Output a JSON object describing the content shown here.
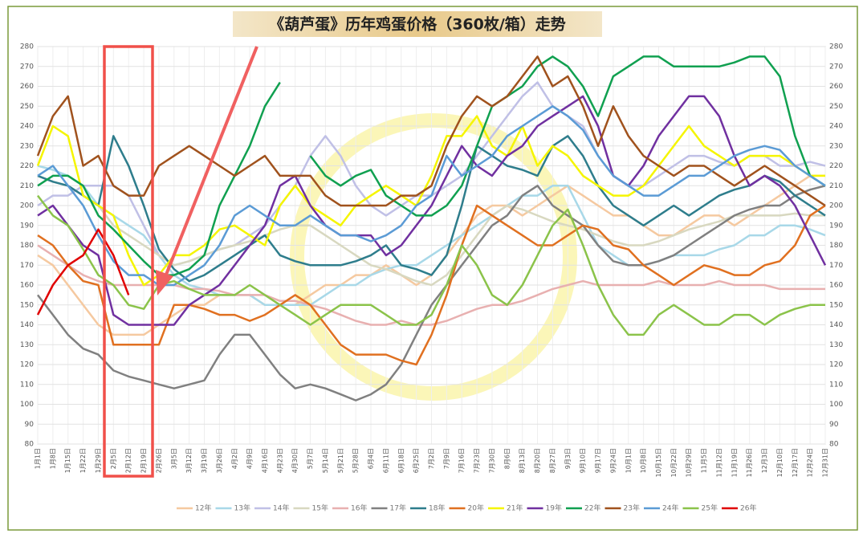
{
  "chart_data": {
    "type": "line",
    "title": "《葫芦蛋》历年鸡蛋价格（360枚/箱）走势",
    "categories": [
      "1月1日",
      "1月8日",
      "1月15日",
      "1月22日",
      "1月29日",
      "2月5日",
      "2月12日",
      "2月19日",
      "2月26日",
      "3月5日",
      "3月12日",
      "3月19日",
      "3月26日",
      "4月2日",
      "4月9日",
      "4月16日",
      "4月23日",
      "4月30日",
      "5月7日",
      "5月14日",
      "5月21日",
      "5月28日",
      "6月4日",
      "6月11日",
      "6月18日",
      "6月25日",
      "7月2日",
      "7月9日",
      "7月16日",
      "7月23日",
      "7月30日",
      "8月6日",
      "8月13日",
      "8月20日",
      "8月27日",
      "9月3日",
      "9月10日",
      "9月17日",
      "9月24日",
      "10月1日",
      "10月8日",
      "10月15日",
      "10月22日",
      "10月29日",
      "11月5日",
      "11月12日",
      "11月19日",
      "11月26日",
      "12月3日",
      "12月10日",
      "12月17日",
      "12月24日",
      "12月31日"
    ],
    "ylim": [
      80,
      280
    ],
    "yticks": [
      80,
      90,
      100,
      110,
      120,
      130,
      140,
      150,
      160,
      170,
      180,
      190,
      200,
      210,
      220,
      230,
      240,
      250,
      260,
      270,
      280
    ],
    "grid": true,
    "legend": "bottom",
    "series": [
      {
        "name": "12年",
        "color": "#f5c9a0",
        "values": [
          175,
          170,
          160,
          150,
          140,
          135,
          135,
          135,
          140,
          145,
          150,
          150,
          155,
          155,
          155,
          150,
          150,
          150,
          155,
          160,
          160,
          165,
          165,
          170,
          165,
          160,
          165,
          175,
          185,
          195,
          200,
          200,
          195,
          200,
          205,
          210,
          205,
          200,
          195,
          195,
          190,
          185,
          185,
          190,
          195,
          195,
          190,
          195,
          200,
          205,
          210,
          215,
          215
        ]
      },
      {
        "name": "13年",
        "color": "#a8d8e8",
        "values": [
          220,
          218,
          215,
          210,
          200,
          195,
          190,
          185,
          175,
          165,
          160,
          158,
          155,
          155,
          155,
          150,
          150,
          150,
          150,
          155,
          160,
          160,
          165,
          168,
          170,
          170,
          175,
          180,
          185,
          190,
          195,
          200,
          205,
          205,
          210,
          210,
          195,
          180,
          175,
          170,
          170,
          172,
          175,
          175,
          175,
          178,
          180,
          185,
          185,
          190,
          190,
          188,
          185
        ]
      },
      {
        "name": "14年",
        "color": "#c0c0e6",
        "values": [
          200,
          205,
          205,
          210,
          210,
          210,
          205,
          190,
          175,
          170,
          172,
          175,
          178,
          180,
          185,
          190,
          200,
          210,
          225,
          235,
          225,
          210,
          200,
          195,
          200,
          205,
          205,
          210,
          215,
          225,
          235,
          245,
          255,
          262,
          250,
          245,
          240,
          225,
          215,
          210,
          210,
          215,
          220,
          225,
          225,
          222,
          220,
          225,
          225,
          220,
          220,
          222,
          220
        ]
      },
      {
        "name": "15年",
        "color": "#d8d8c0",
        "values": [
          215,
          212,
          210,
          205,
          200,
          190,
          185,
          180,
          175,
          170,
          172,
          175,
          178,
          180,
          182,
          185,
          188,
          190,
          190,
          185,
          180,
          175,
          170,
          168,
          165,
          162,
          160,
          165,
          175,
          185,
          195,
          200,
          198,
          195,
          192,
          190,
          188,
          185,
          182,
          180,
          180,
          182,
          185,
          188,
          190,
          192,
          195,
          195,
          195,
          195,
          196,
          195,
          195
        ]
      },
      {
        "name": "16年",
        "color": "#e8b0b0",
        "values": [
          180,
          175,
          170,
          165,
          162,
          160,
          160,
          160,
          160,
          160,
          158,
          158,
          157,
          155,
          155,
          155,
          152,
          152,
          150,
          148,
          145,
          142,
          140,
          140,
          142,
          140,
          140,
          142,
          145,
          148,
          150,
          150,
          152,
          155,
          158,
          160,
          162,
          160,
          160,
          160,
          160,
          162,
          160,
          160,
          160,
          162,
          160,
          160,
          160,
          158,
          158,
          158,
          158
        ]
      },
      {
        "name": "17年",
        "color": "#808080",
        "values": [
          155,
          145,
          135,
          128,
          125,
          117,
          114,
          112,
          110,
          108,
          110,
          112,
          125,
          135,
          135,
          125,
          115,
          108,
          110,
          108,
          105,
          102,
          105,
          110,
          120,
          135,
          150,
          160,
          170,
          180,
          190,
          195,
          205,
          210,
          200,
          195,
          190,
          180,
          172,
          170,
          170,
          172,
          175,
          180,
          185,
          190,
          195,
          198,
          200,
          200,
          205,
          208,
          210
        ]
      },
      {
        "name": "18年",
        "color": "#2e7d8c",
        "values": [
          215,
          212,
          210,
          205,
          200,
          235,
          220,
          200,
          178,
          168,
          162,
          165,
          170,
          175,
          180,
          185,
          175,
          172,
          170,
          170,
          170,
          172,
          175,
          180,
          170,
          168,
          165,
          175,
          200,
          230,
          225,
          220,
          218,
          215,
          230,
          235,
          225,
          210,
          200,
          195,
          190,
          195,
          200,
          195,
          200,
          205,
          208,
          210,
          215,
          212,
          205,
          200,
          195
        ]
      },
      {
        "name": "20年",
        "color": "#e07020",
        "values": [
          185,
          180,
          170,
          162,
          160,
          130,
          130,
          130,
          130,
          150,
          150,
          148,
          145,
          145,
          142,
          145,
          150,
          155,
          150,
          140,
          130,
          125,
          125,
          125,
          122,
          120,
          135,
          155,
          180,
          200,
          195,
          190,
          185,
          180,
          180,
          185,
          190,
          188,
          180,
          178,
          170,
          165,
          160,
          165,
          170,
          168,
          165,
          165,
          170,
          172,
          180,
          195,
          200
        ]
      },
      {
        "name": "21年",
        "color": "#f5f500",
        "values": [
          220,
          240,
          235,
          205,
          200,
          195,
          175,
          160,
          165,
          175,
          175,
          180,
          188,
          190,
          185,
          180,
          200,
          210,
          200,
          195,
          190,
          200,
          205,
          210,
          205,
          200,
          215,
          235,
          235,
          245,
          230,
          225,
          240,
          220,
          230,
          225,
          215,
          210,
          205,
          205,
          210,
          220,
          230,
          240,
          230,
          225,
          220,
          225,
          225,
          225,
          220,
          215,
          215
        ]
      },
      {
        "name": "19年",
        "color": "#7030a0",
        "values": [
          195,
          200,
          190,
          180,
          175,
          145,
          140,
          140,
          140,
          140,
          150,
          155,
          160,
          170,
          180,
          190,
          210,
          215,
          200,
          190,
          185,
          185,
          185,
          175,
          180,
          190,
          200,
          215,
          230,
          220,
          215,
          225,
          230,
          240,
          245,
          250,
          255,
          240,
          215,
          210,
          220,
          235,
          245,
          255,
          255,
          245,
          225,
          210,
          215,
          210,
          200,
          185,
          170
        ]
      },
      {
        "name": "22年",
        "color": "#10a050",
        "values": [
          210,
          215,
          215,
          210,
          195,
          188,
          180,
          172,
          165,
          165,
          168,
          175,
          200,
          215,
          230,
          250,
          262,
          null,
          225,
          215,
          210,
          215,
          218,
          205,
          200,
          195,
          195,
          200,
          210,
          230,
          250,
          255,
          260,
          270,
          275,
          270,
          260,
          245,
          265,
          270,
          275,
          275,
          270,
          270,
          270,
          270,
          272,
          275,
          275,
          265,
          235,
          215,
          210
        ]
      },
      {
        "name": "23年",
        "color": "#a0521d",
        "values": [
          225,
          245,
          255,
          220,
          225,
          210,
          205,
          205,
          220,
          225,
          230,
          225,
          220,
          215,
          220,
          225,
          215,
          215,
          215,
          205,
          200,
          200,
          200,
          200,
          205,
          205,
          210,
          230,
          245,
          255,
          250,
          255,
          265,
          275,
          260,
          265,
          250,
          230,
          250,
          235,
          225,
          220,
          215,
          220,
          220,
          215,
          210,
          215,
          220,
          215,
          210,
          205,
          200
        ]
      },
      {
        "name": "24年",
        "color": "#5b9bd5",
        "values": [
          215,
          220,
          210,
          200,
          185,
          172,
          165,
          165,
          160,
          160,
          165,
          170,
          180,
          195,
          200,
          195,
          190,
          190,
          195,
          190,
          185,
          185,
          182,
          185,
          190,
          200,
          205,
          225,
          215,
          220,
          225,
          235,
          240,
          245,
          250,
          245,
          238,
          225,
          215,
          210,
          205,
          205,
          210,
          215,
          215,
          220,
          225,
          228,
          230,
          228,
          220,
          215,
          210
        ]
      },
      {
        "name": "25年",
        "color": "#8bc34a",
        "values": [
          205,
          195,
          190,
          178,
          165,
          160,
          150,
          148,
          160,
          162,
          158,
          155,
          155,
          155,
          160,
          155,
          150,
          145,
          140,
          145,
          150,
          150,
          150,
          145,
          140,
          140,
          145,
          160,
          180,
          170,
          155,
          150,
          160,
          175,
          190,
          198,
          180,
          160,
          145,
          135,
          135,
          145,
          150,
          145,
          140,
          140,
          145,
          145,
          140,
          145,
          148,
          150,
          150
        ]
      },
      {
        "name": "26年",
        "color": "#e00000",
        "values": [
          145,
          160,
          170,
          175,
          188,
          175,
          155,
          null,
          null,
          null,
          null,
          null,
          null,
          null,
          null,
          null,
          null,
          null,
          null,
          null,
          null,
          null,
          null,
          null,
          null,
          null,
          null,
          null,
          null,
          null,
          null,
          null,
          null,
          null,
          null,
          null,
          null,
          null,
          null,
          null,
          null,
          null,
          null,
          null,
          null,
          null,
          null,
          null,
          null,
          null,
          null,
          null,
          null
        ]
      }
    ]
  }
}
